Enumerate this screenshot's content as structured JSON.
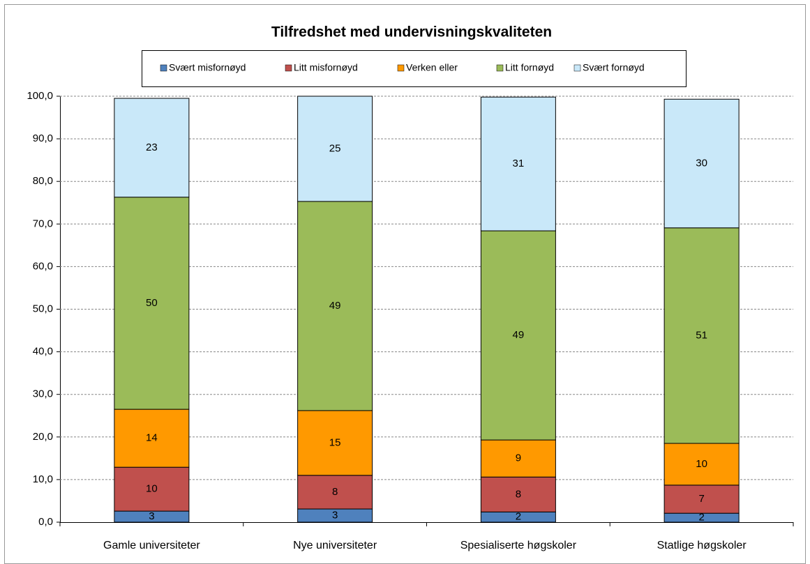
{
  "chart_data": {
    "type": "stacked_bar",
    "title": "Tilfredshet med undervisningskvaliteten",
    "categories": [
      "Gamle universiteter",
      "Nye universiteter",
      "Spesialiserte høgskoler",
      "Statlige høgskoler"
    ],
    "series": [
      {
        "name": "Svært misfornøyd",
        "color": "#4f81bd",
        "values": [
          2.6,
          3.1,
          2.4,
          2.1
        ],
        "value_labels": [
          "3",
          "3",
          "2",
          "2"
        ]
      },
      {
        "name": "Litt misfornøyd",
        "color": "#c0504d",
        "values": [
          10.3,
          7.9,
          8.2,
          6.6
        ],
        "value_labels": [
          "10",
          "8",
          "8",
          "7"
        ]
      },
      {
        "name": "Verken eller",
        "color": "#ff9900",
        "values": [
          13.6,
          15.2,
          8.7,
          9.8
        ],
        "value_labels": [
          "14",
          "15",
          "9",
          "10"
        ]
      },
      {
        "name": "Litt fornøyd",
        "color": "#9bbb59",
        "values": [
          49.8,
          49.1,
          49.1,
          50.6
        ],
        "value_labels": [
          "50",
          "49",
          "49",
          "51"
        ]
      },
      {
        "name": "Svært fornøyd",
        "color": "#c9e8f9",
        "values": [
          23.2,
          24.7,
          31.4,
          30.2
        ],
        "value_labels": [
          "23",
          "25",
          "31",
          "30"
        ]
      }
    ],
    "ylim": [
      0,
      100
    ],
    "yticks": [
      {
        "value": 0,
        "label": "0,0"
      },
      {
        "value": 10,
        "label": "10,0"
      },
      {
        "value": 20,
        "label": "20,0"
      },
      {
        "value": 30,
        "label": "30,0"
      },
      {
        "value": 40,
        "label": "40,0"
      },
      {
        "value": 50,
        "label": "50,0"
      },
      {
        "value": 60,
        "label": "60,0"
      },
      {
        "value": 70,
        "label": "70,0"
      },
      {
        "value": 80,
        "label": "80,0"
      },
      {
        "value": 90,
        "label": "90,0"
      },
      {
        "value": 100,
        "label": "100,0"
      }
    ],
    "grid": true,
    "legend": "top"
  }
}
